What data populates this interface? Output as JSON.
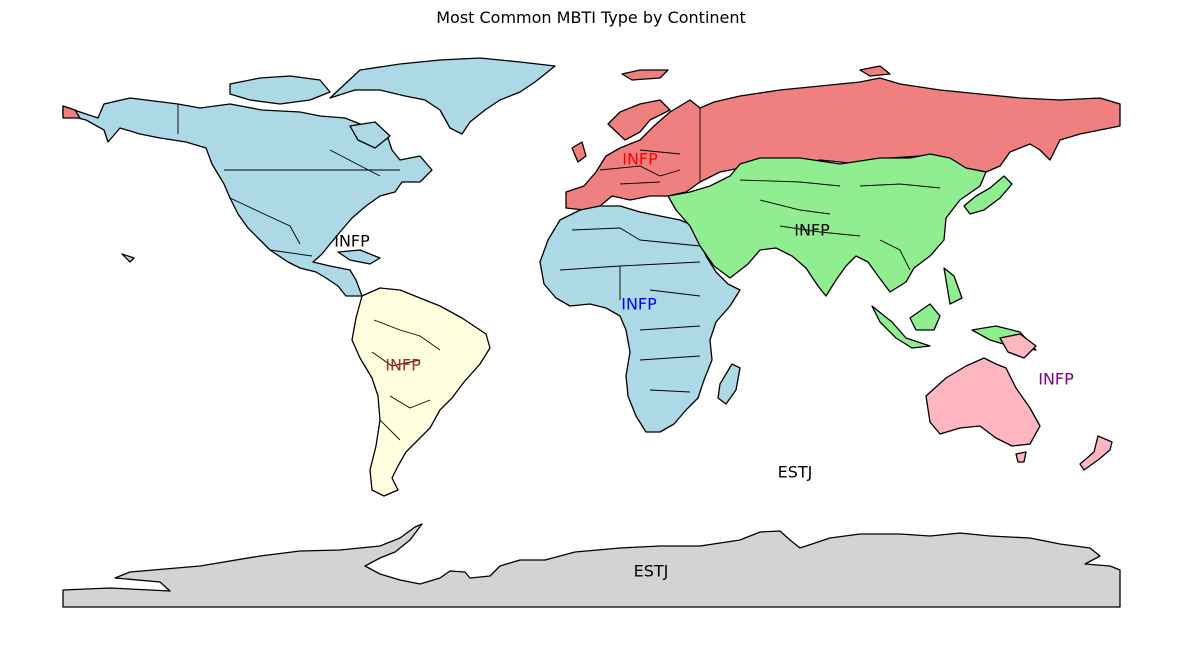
{
  "title": "Most Common MBTI Type by Continent",
  "regions": [
    {
      "id": "north-america",
      "color": "#add8e6",
      "label": "INFP",
      "label_color": "#000000"
    },
    {
      "id": "europe",
      "color": "#f08080",
      "label": "INFP",
      "label_color": "#ff0000"
    },
    {
      "id": "asia",
      "color": "#90ee90",
      "label": "INFP",
      "label_color": "#000000"
    },
    {
      "id": "africa",
      "color": "#add8e6",
      "label": "INFP",
      "label_color": "#0000ff"
    },
    {
      "id": "south-america",
      "color": "#ffffe0",
      "label": "INFP",
      "label_color": "#a52a2a"
    },
    {
      "id": "oceania",
      "color": "#ffb6c1",
      "label": "INFP",
      "label_color": "#800080"
    },
    {
      "id": "seven-seas",
      "color": "#ffffff",
      "label": "ESTJ",
      "label_color": "#000000"
    },
    {
      "id": "antarctica",
      "color": "#d3d3d3",
      "label": "ESTJ",
      "label_color": "#000000"
    }
  ]
}
